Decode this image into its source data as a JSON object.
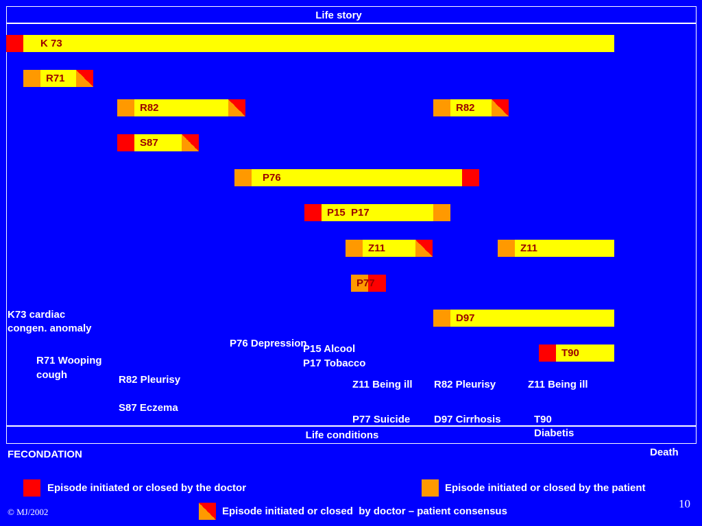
{
  "header": {
    "title": "Life story"
  },
  "footer": {
    "title": "Life conditions"
  },
  "episodes": {
    "k73": "K 73",
    "r71": "R71",
    "r82a": "R82",
    "r82b": "R82",
    "s87": "S87",
    "p76": "P76",
    "p15p17": "P15  P17",
    "z11a": "Z11",
    "z11b": "Z11",
    "p77": "P77",
    "d97": "D97",
    "t90": "T90"
  },
  "annotations": {
    "k73_line1": "K73 cardiac",
    "k73_line2": "congen. anomaly",
    "r71_line1": "R71 Wooping",
    "r71_line2": "cough",
    "r82_left": "R82 Pleurisy",
    "s87": "S87 Eczema",
    "p76": "P76 Depression",
    "p15": "P15 Alcool",
    "p17": "P17 Tobacco",
    "z11_left": "Z11 Being ill",
    "r82_right": "R82 Pleurisy",
    "z11_right": "Z11 Being ill",
    "p77": "P77 Suicide",
    "d97": "D97 Cirrhosis",
    "t90_line1": "T90",
    "t90_line2": "Diabetis"
  },
  "timeline": {
    "start": "FECONDATION",
    "end": "Death"
  },
  "legend": {
    "doctor": "Episode initiated or closed by the doctor",
    "patient": "Episode initiated or closed by the patient",
    "consensus": "Episode initiated or closed  by doctor – patient consensus"
  },
  "slide": {
    "copyright": "© MJ/2002",
    "number": "10"
  },
  "colors": {
    "background": "#0000ff",
    "doctor": "#ff0000",
    "patient": "#ff9900",
    "episode": "#ffff00",
    "code_text": "#990000"
  }
}
